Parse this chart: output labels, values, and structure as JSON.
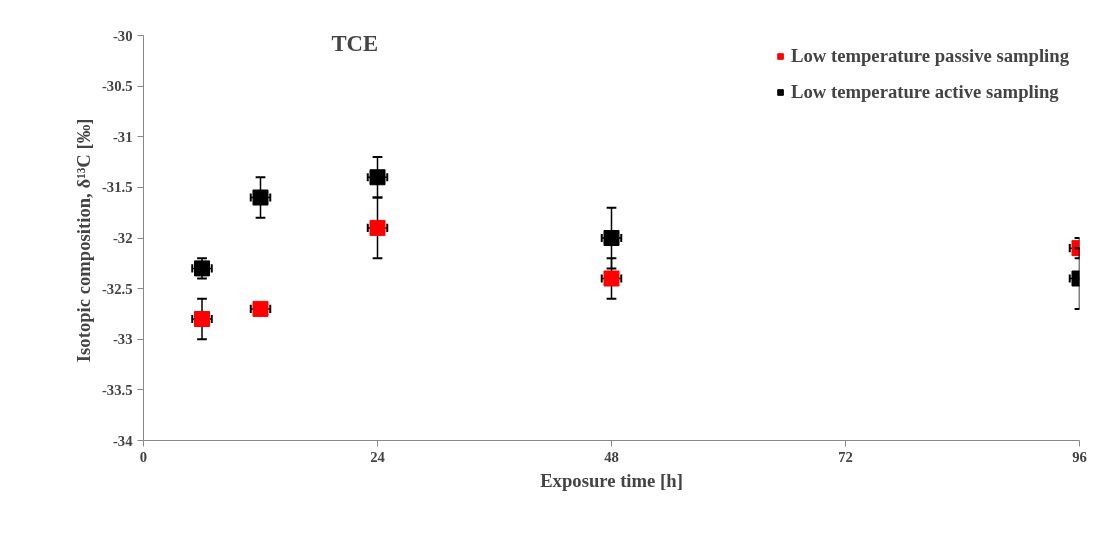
{
  "chart_data": {
    "type": "scatter",
    "title": "TCE",
    "xlabel": "Exposure time [h]",
    "ylabel": "Isotopic  composition, δ¹³C [‰]",
    "marker": "square",
    "legend": "top right",
    "grid": false,
    "xlim": [
      0,
      96
    ],
    "xticks": [
      0,
      24,
      48,
      72,
      96
    ],
    "ylim": [
      -34,
      -30
    ],
    "yticks": [
      -34,
      -33.5,
      -33,
      -32.5,
      -32,
      -31.5,
      -31,
      -30.5,
      -30
    ],
    "series": [
      {
        "name": "Low temperature passive sampling",
        "color": "#ff0000",
        "x": [
          6,
          12,
          24,
          48,
          96
        ],
        "values": [
          -32.8,
          -32.7,
          -31.9,
          -32.4,
          -32.1
        ],
        "errors": [
          0.2,
          null,
          0.3,
          0.2,
          0.1
        ],
        "xerrors": [
          1,
          1,
          1,
          1,
          1
        ]
      },
      {
        "name": "Low temperature active sampling",
        "color": "#000000",
        "x": [
          6,
          12,
          24,
          48,
          96
        ],
        "values": [
          -32.3,
          -31.6,
          -31.4,
          -32.0,
          -32.4
        ],
        "errors": [
          0.1,
          0.2,
          0.2,
          0.3,
          0.3
        ],
        "xerrors": [
          1,
          1,
          1,
          1,
          1
        ]
      }
    ]
  }
}
